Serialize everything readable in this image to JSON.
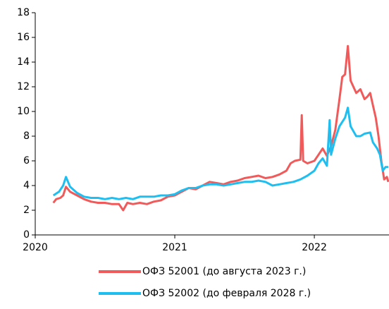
{
  "chart_data": {
    "type": "line",
    "xlim": [
      2020,
      2022.535
    ],
    "xticks": [
      2020,
      2021,
      2022
    ],
    "ylim": [
      0,
      18
    ],
    "yticks": [
      0,
      2,
      4,
      6,
      8,
      10,
      12,
      14,
      16,
      18
    ],
    "legend": "bottom",
    "series": [
      {
        "name": "ОФЗ 52001 (до августа 2023 г.)",
        "color": "#f05a5a",
        "x": [
          2020.13,
          2020.15,
          2020.18,
          2020.2,
          2020.22,
          2020.25,
          2020.3,
          2020.35,
          2020.4,
          2020.45,
          2020.5,
          2020.55,
          2020.6,
          2020.63,
          2020.66,
          2020.7,
          2020.75,
          2020.8,
          2020.85,
          2020.9,
          2020.95,
          2021.0,
          2021.05,
          2021.1,
          2021.15,
          2021.2,
          2021.25,
          2021.3,
          2021.35,
          2021.4,
          2021.45,
          2021.5,
          2021.55,
          2021.6,
          2021.65,
          2021.7,
          2021.75,
          2021.8,
          2021.83,
          2021.86,
          2021.9,
          2021.91,
          2021.92,
          2021.95,
          2022.0,
          2022.03,
          2022.06,
          2022.09,
          2022.12,
          2022.15,
          2022.18,
          2022.2,
          2022.22,
          2022.24,
          2022.26,
          2022.28,
          2022.3,
          2022.33,
          2022.36,
          2022.38,
          2022.4,
          2022.42,
          2022.44,
          2022.46,
          2022.48,
          2022.5,
          2022.52,
          2022.53
        ],
        "values": [
          2.6,
          2.9,
          3.0,
          3.2,
          3.9,
          3.5,
          3.2,
          2.9,
          2.7,
          2.6,
          2.6,
          2.5,
          2.5,
          2.0,
          2.6,
          2.5,
          2.6,
          2.5,
          2.7,
          2.8,
          3.1,
          3.2,
          3.5,
          3.8,
          3.7,
          4.0,
          4.3,
          4.2,
          4.1,
          4.3,
          4.4,
          4.6,
          4.7,
          4.8,
          4.6,
          4.7,
          4.9,
          5.2,
          5.8,
          6.0,
          6.1,
          9.7,
          6.0,
          5.8,
          6.0,
          6.5,
          7.0,
          6.4,
          7.2,
          8.5,
          11.0,
          12.8,
          13.0,
          15.3,
          12.5,
          12.0,
          11.5,
          11.8,
          11.0,
          11.2,
          11.5,
          10.5,
          9.5,
          8.0,
          6.0,
          4.5,
          4.7,
          4.3
        ]
      },
      {
        "name": "ОФЗ 52002 (до февраля 2028 г.)",
        "color": "#1ebff0",
        "x": [
          2020.13,
          2020.17,
          2020.2,
          2020.22,
          2020.25,
          2020.3,
          2020.35,
          2020.4,
          2020.45,
          2020.5,
          2020.55,
          2020.6,
          2020.65,
          2020.7,
          2020.75,
          2020.8,
          2020.85,
          2020.9,
          2020.95,
          2021.0,
          2021.05,
          2021.1,
          2021.15,
          2021.2,
          2021.25,
          2021.3,
          2021.35,
          2021.4,
          2021.45,
          2021.5,
          2021.55,
          2021.6,
          2021.65,
          2021.7,
          2021.75,
          2021.8,
          2021.85,
          2021.9,
          2021.95,
          2022.0,
          2022.03,
          2022.06,
          2022.09,
          2022.11,
          2022.12,
          2022.15,
          2022.18,
          2022.22,
          2022.24,
          2022.26,
          2022.3,
          2022.33,
          2022.36,
          2022.4,
          2022.42,
          2022.45,
          2022.47,
          2022.49,
          2022.51,
          2022.53
        ],
        "values": [
          3.2,
          3.5,
          4.0,
          4.7,
          3.9,
          3.4,
          3.1,
          3.0,
          3.0,
          2.9,
          3.0,
          2.9,
          3.0,
          2.9,
          3.1,
          3.1,
          3.1,
          3.2,
          3.2,
          3.3,
          3.6,
          3.8,
          3.8,
          4.0,
          4.1,
          4.1,
          4.0,
          4.1,
          4.2,
          4.3,
          4.3,
          4.4,
          4.3,
          4.0,
          4.1,
          4.2,
          4.3,
          4.5,
          4.8,
          5.2,
          5.8,
          6.2,
          5.6,
          9.3,
          6.5,
          7.8,
          8.8,
          9.5,
          10.3,
          8.8,
          8.0,
          8.0,
          8.2,
          8.3,
          7.5,
          7.0,
          6.5,
          5.2,
          5.5,
          5.5
        ]
      }
    ]
  }
}
